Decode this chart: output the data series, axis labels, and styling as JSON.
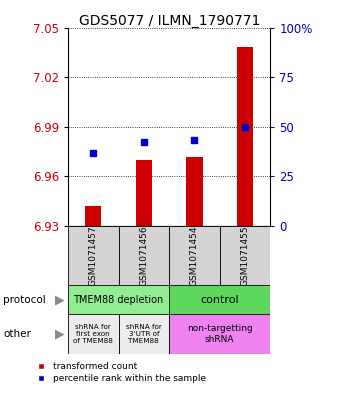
{
  "title": "GDS5077 / ILMN_1790771",
  "samples": [
    "GSM1071457",
    "GSM1071456",
    "GSM1071454",
    "GSM1071455"
  ],
  "red_values": [
    6.942,
    6.97,
    6.972,
    7.038
  ],
  "blue_values": [
    6.974,
    6.981,
    6.982,
    6.99
  ],
  "ylim": [
    6.93,
    7.05
  ],
  "yticks": [
    6.93,
    6.96,
    6.99,
    7.02,
    7.05
  ],
  "right_yticks": [
    0,
    25,
    50,
    75,
    100
  ],
  "protocol_labels": [
    "TMEM88 depletion",
    "control"
  ],
  "protocol_colors": [
    "#90EE90",
    "#5DD85D"
  ],
  "other_labels": [
    "shRNA for\nfirst exon\nof TMEM88",
    "shRNA for\n3'UTR of\nTMEM88",
    "non-targetting\nshRNA"
  ],
  "other_colors": [
    "#ECECEC",
    "#ECECEC",
    "#EE82EE"
  ],
  "sample_box_color": "#D3D3D3",
  "bar_color": "#CC0000",
  "dot_color": "#0000CC",
  "axis_label_color_left": "#CC0000",
  "axis_label_color_right": "#0000CC",
  "legend_red": "transformed count",
  "legend_blue": "percentile rank within the sample"
}
